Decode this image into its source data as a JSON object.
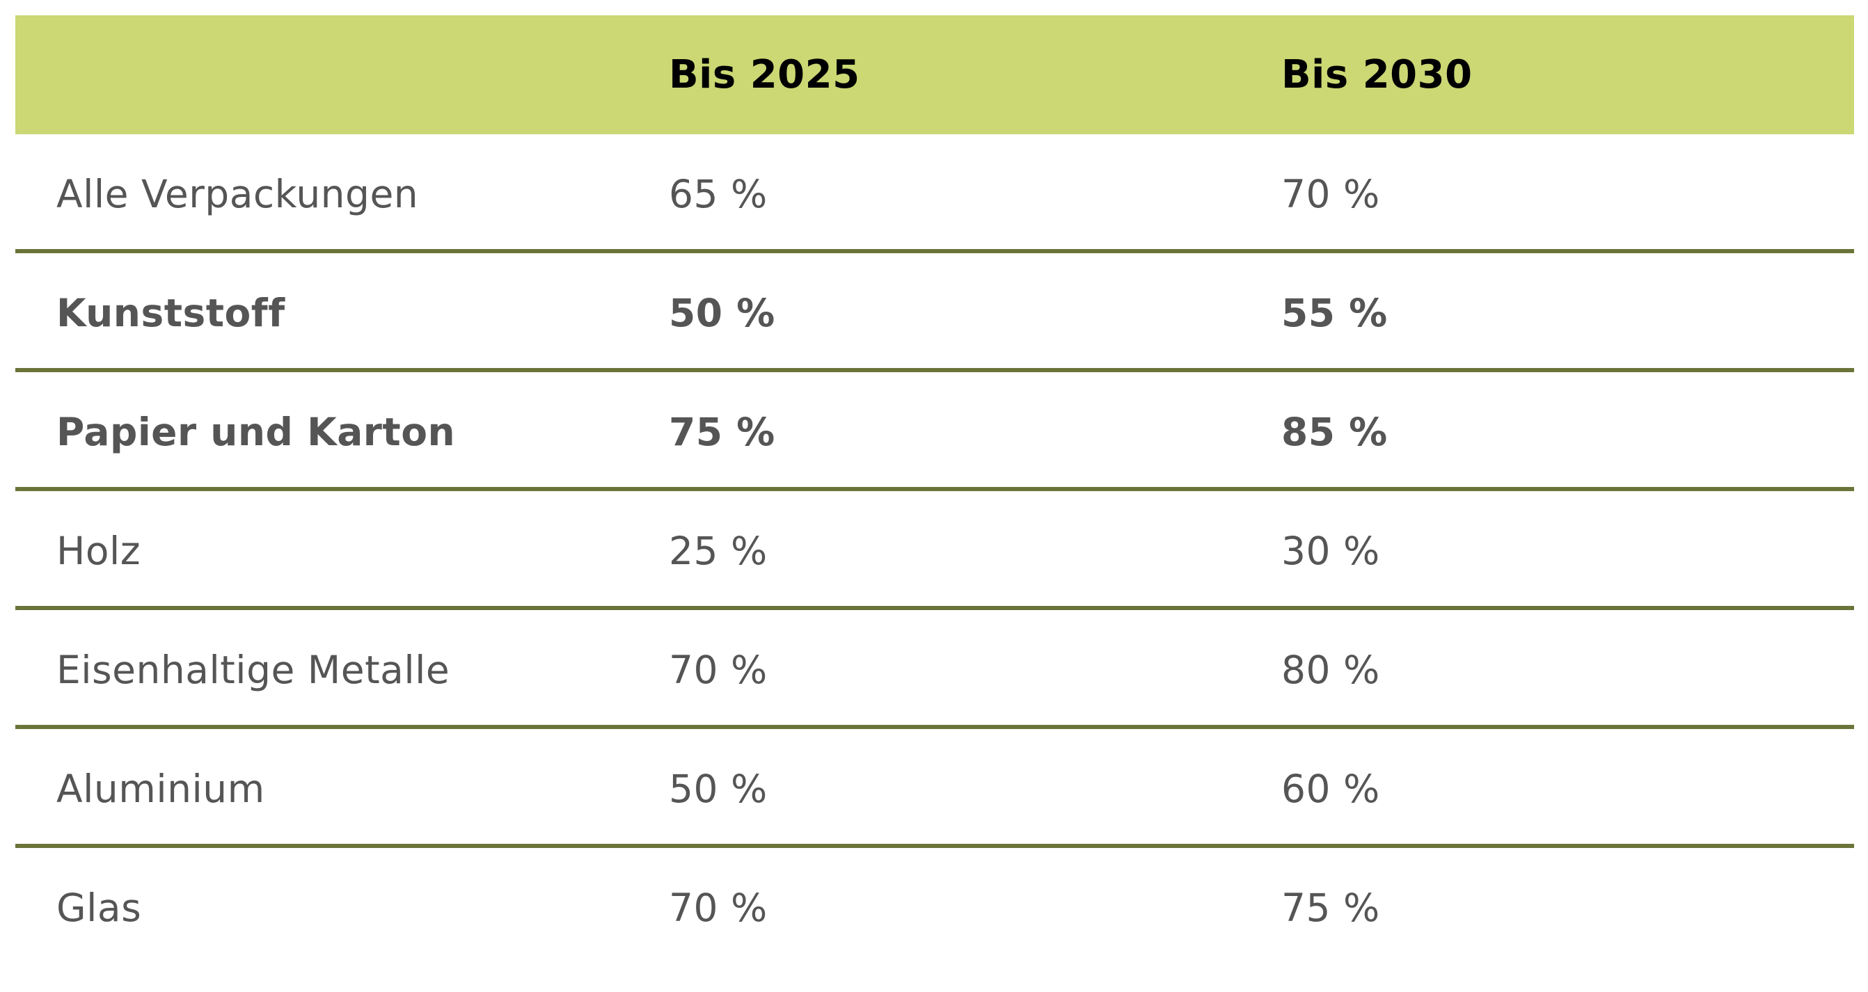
{
  "table": {
    "header": [
      "",
      "Bis 2025",
      "Bis 2030"
    ],
    "rows": [
      {
        "material": "Alle Verpackungen",
        "y2025": "65 %",
        "y2030": "70 %",
        "bold": false
      },
      {
        "material": "Kunststoff",
        "y2025": "50 %",
        "y2030": "55 %",
        "bold": true
      },
      {
        "material": "Papier und Karton",
        "y2025": "75 %",
        "y2030": "85 %",
        "bold": true
      },
      {
        "material": "Holz",
        "y2025": "25 %",
        "y2030": "30 %",
        "bold": false
      },
      {
        "material": "Eisenhaltige Metalle",
        "y2025": "70 %",
        "y2030": "80 %",
        "bold": false
      },
      {
        "material": "Aluminium",
        "y2025": "50 %",
        "y2030": "60 %",
        "bold": false
      },
      {
        "material": "Glas",
        "y2025": "70 %",
        "y2030": "75 %",
        "bold": false
      }
    ],
    "colors": {
      "header_bg": "#cbd874",
      "divider": "#6b7339",
      "text": "#555555",
      "header_text": "#000000"
    }
  }
}
